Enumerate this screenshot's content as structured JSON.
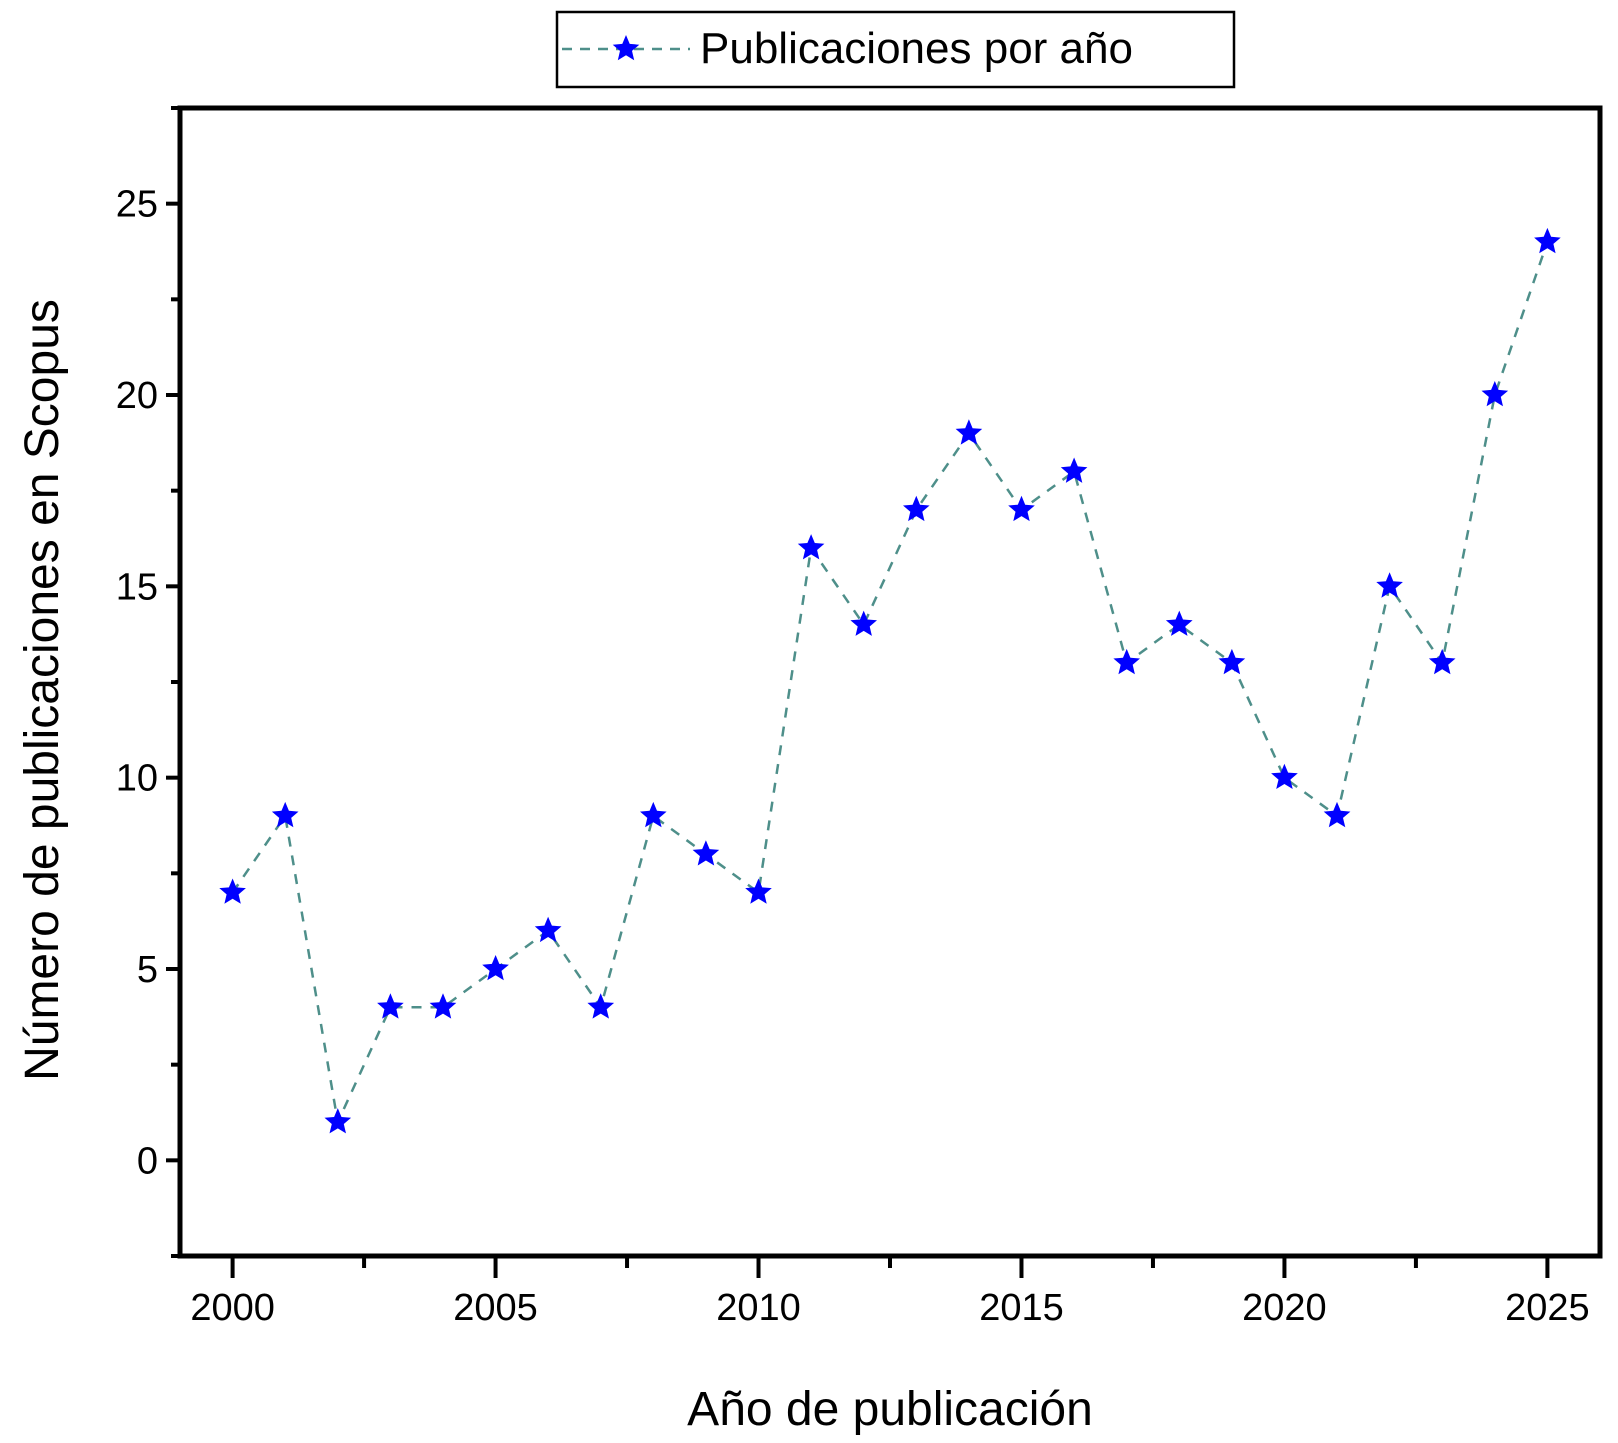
{
  "chart_data": {
    "type": "line",
    "title": "",
    "xlabel": "Año de publicación",
    "ylabel": "Número de publicaciones en Scopus",
    "x": [
      2000,
      2001,
      2002,
      2003,
      2004,
      2005,
      2006,
      2007,
      2008,
      2009,
      2010,
      2011,
      2012,
      2013,
      2014,
      2015,
      2016,
      2017,
      2018,
      2019,
      2020,
      2021,
      2022,
      2023,
      2024,
      2025
    ],
    "series": [
      {
        "name": "Publicaciones por año",
        "values": [
          7,
          9,
          1,
          4,
          4,
          5,
          6,
          4,
          9,
          8,
          7,
          16,
          14,
          17,
          19,
          17,
          18,
          13,
          14,
          13,
          10,
          9,
          15,
          13,
          20,
          24
        ],
        "marker": "star",
        "marker_color": "#0000ff",
        "line_style": "dashed",
        "line_color": "#4e8f8a"
      }
    ],
    "xlim": [
      1999.0,
      2026.0
    ],
    "ylim": [
      -2.5,
      27.5
    ],
    "x_ticks": [
      "2000",
      "2005",
      "2010",
      "2015",
      "2020",
      "2025"
    ],
    "y_ticks": [
      "0",
      "5",
      "10",
      "15",
      "20",
      "25"
    ],
    "grid": false,
    "legend_position": "top-center-outside"
  },
  "legend": {
    "label": "Publicaciones por año"
  },
  "axes": {
    "xlabel": "Año de publicación",
    "ylabel": "Número de publicaciones en Scopus",
    "x_tick_labels": [
      "2000",
      "2005",
      "2010",
      "2015",
      "2020",
      "2025"
    ],
    "y_tick_labels": [
      "0",
      "5",
      "10",
      "15",
      "20",
      "25"
    ]
  }
}
